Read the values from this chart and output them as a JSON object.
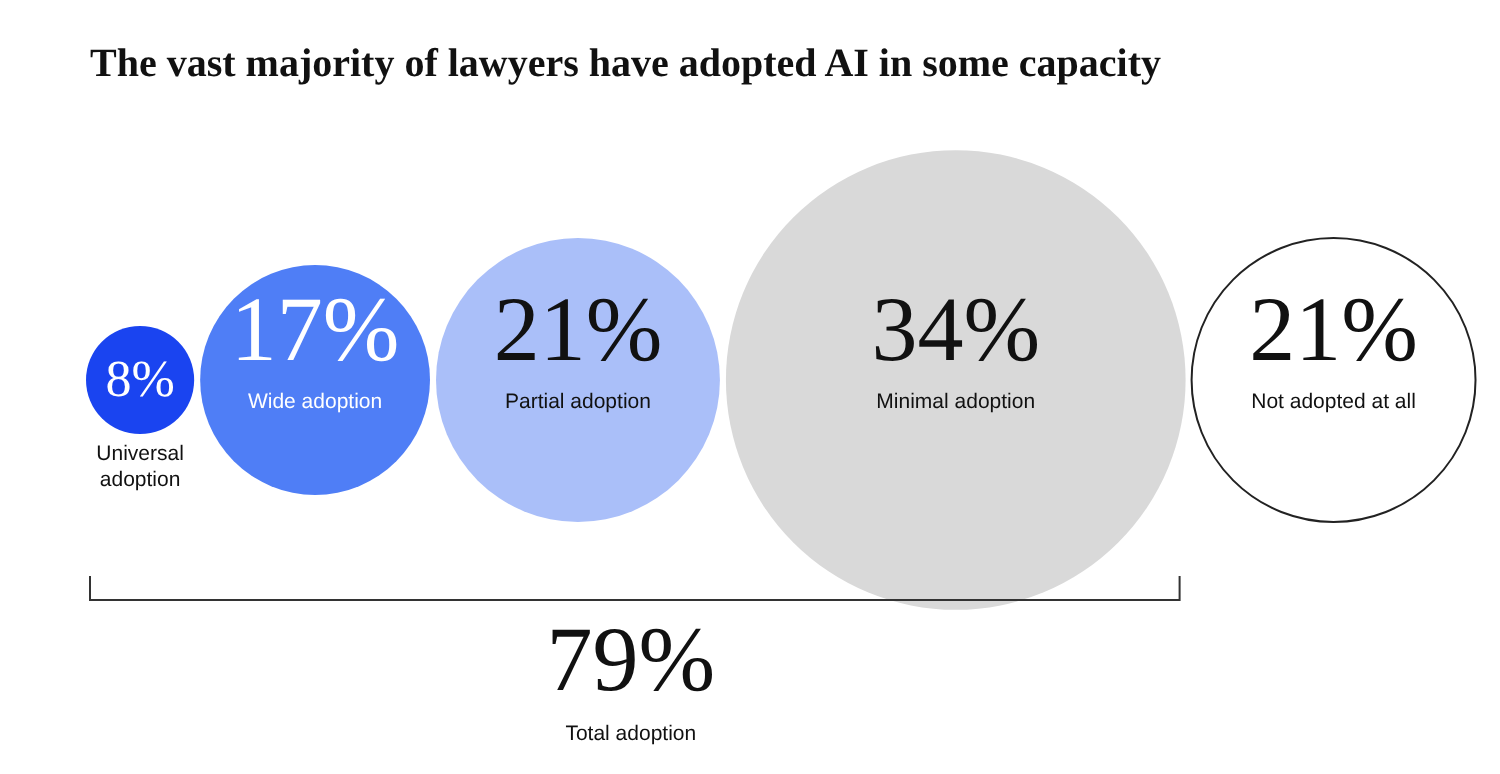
{
  "chart_data": {
    "type": "other",
    "title": "The vast majority of lawyers have adopted AI in some capacity",
    "categories": [
      "Universal adoption",
      "Wide adoption",
      "Partial adoption",
      "Minimal adoption",
      "Not adopted at all"
    ],
    "values": [
      8,
      17,
      21,
      34,
      21
    ],
    "value_labels": [
      "8%",
      "17%",
      "21%",
      "34%",
      "21%"
    ],
    "colors": [
      "#1a44f0",
      "#4f7ef6",
      "#aabff9",
      "#d9d9d9",
      "#ffffff"
    ],
    "annotations": [
      "79%",
      "Total adoption"
    ]
  }
}
